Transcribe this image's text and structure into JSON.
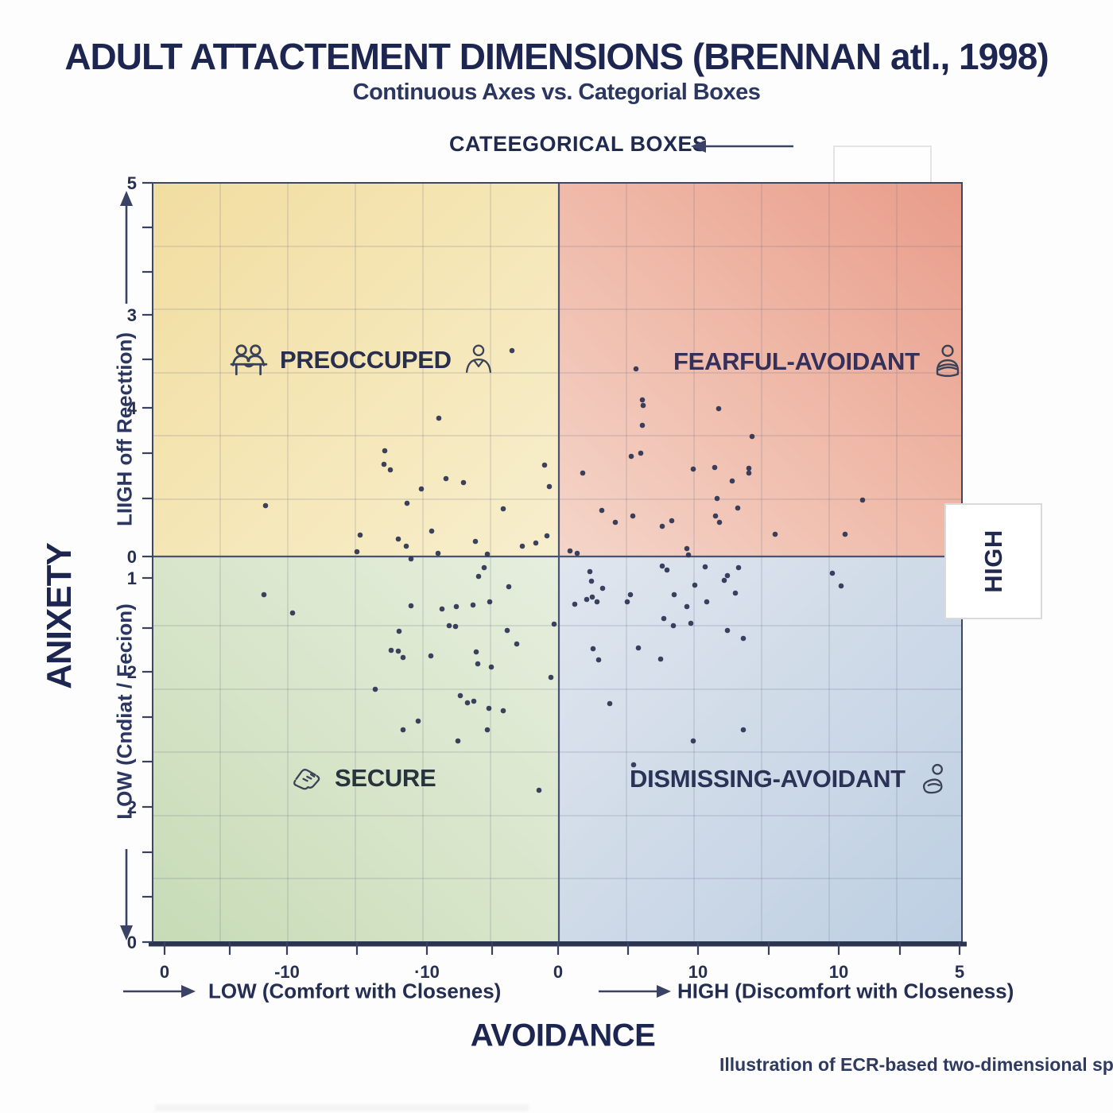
{
  "page": {
    "title": "ADULT ATTACTEMENT DIMENSIONS (BRENNAN atl., 1998)",
    "subtitle": "Continuous Axes vs. Categorial Boxes",
    "annotation": "CATEEGORICAL BOXES",
    "caption": "Illustration of ECR-based two-dimensional space"
  },
  "axes": {
    "y_title": "ANIXETY",
    "y_high_label": "LIIGH off Reecttion)",
    "y_low_label": "LOW (Cndiat / Fecion)",
    "x_title": "AVOIDANCE",
    "x_low_label": "LOW (Comfort with Closenes)",
    "x_high_label": "HIGH (Discomfort with Closeness)",
    "right_label": "HIGH"
  },
  "quadrants": [
    {
      "id": "preoccupied",
      "label": "PREOCCUPED",
      "position": "top-left",
      "fill": "#f2e2aa",
      "label_color": "#272e4e",
      "icons": [
        "people-group-icon",
        "person-icon"
      ]
    },
    {
      "id": "fearful-avoidant",
      "label": "FEARFUL-AVOIDANT",
      "position": "top-right",
      "fill": "#eeb0a0",
      "label_color": "#34305a",
      "icons": [
        "crossed-arms-person-icon"
      ]
    },
    {
      "id": "secure",
      "label": "SECURE",
      "position": "bottom-left",
      "fill": "#cfe0c0",
      "label_color": "#27343c",
      "icons": [
        "handshake-icon"
      ]
    },
    {
      "id": "dismissing-avoidant",
      "label": "DISMISSING-AVOIDANT",
      "position": "bottom-right",
      "fill": "#c4d4e5",
      "label_color": "#2a3356",
      "icons": [
        "seated-person-icon"
      ]
    }
  ],
  "colors": {
    "ink": "#1d2650",
    "point": "#2b3252",
    "grid": "rgba(95,105,130,0.25)",
    "axis": "#3e4660",
    "center_line": "#4a5472"
  },
  "chart_data": {
    "type": "scatter",
    "title": "ADULT ATTACTEMENT DIMENSIONS (BRENNAN atl., 1998)",
    "xlabel": "AVOIDANCE",
    "ylabel": "ANIXETY",
    "legend": "none",
    "grid_on": true,
    "coord_note": "source axis tick labels are garbled/non-monotonic; points captured as plot-area pixels, origin at plot top-left, plot 1018x955 px, center cross at (511,470)",
    "x_ticks": [
      [
        15,
        "0"
      ],
      [
        97,
        ""
      ],
      [
        169,
        "-10"
      ],
      [
        257,
        ""
      ],
      [
        345,
        "·10"
      ],
      [
        427,
        ""
      ],
      [
        510,
        "0"
      ],
      [
        598,
        ""
      ],
      [
        686,
        "10"
      ],
      [
        775,
        ""
      ],
      [
        863,
        "10"
      ],
      [
        940,
        ""
      ],
      [
        1015,
        "5"
      ]
    ],
    "y_ticks": [
      [
        0,
        "5"
      ],
      [
        56,
        ""
      ],
      [
        112,
        ""
      ],
      [
        166,
        "3"
      ],
      [
        222,
        ""
      ],
      [
        283,
        "4"
      ],
      [
        340,
        ""
      ],
      [
        397,
        ""
      ],
      [
        470,
        "0"
      ],
      [
        497,
        "1"
      ],
      [
        560,
        ""
      ],
      [
        615,
        "2"
      ],
      [
        672,
        ""
      ],
      [
        728,
        ""
      ],
      [
        785,
        "2"
      ],
      [
        842,
        ""
      ],
      [
        898,
        ""
      ],
      [
        955,
        "0"
      ]
    ],
    "grid": {
      "v": [
        85,
        170,
        255,
        340,
        425,
        596,
        681,
        766,
        851,
        936
      ],
      "h": [
        80,
        159,
        239,
        318,
        398,
        557,
        637,
        716,
        796,
        875
      ]
    },
    "center": {
      "x": 511,
      "y": 470
    },
    "points": [
      [
        452,
        211
      ],
      [
        360,
        296
      ],
      [
        292,
        337
      ],
      [
        291,
        354
      ],
      [
        299,
        361
      ],
      [
        369,
        372
      ],
      [
        391,
        377
      ],
      [
        338,
        385
      ],
      [
        320,
        403
      ],
      [
        142,
        406
      ],
      [
        493,
        355
      ],
      [
        499,
        382
      ],
      [
        441,
        410
      ],
      [
        261,
        443
      ],
      [
        309,
        448
      ],
      [
        319,
        457
      ],
      [
        257,
        464
      ],
      [
        351,
        438
      ],
      [
        359,
        466
      ],
      [
        325,
        473
      ],
      [
        406,
        451
      ],
      [
        421,
        467
      ],
      [
        465,
        457
      ],
      [
        482,
        453
      ],
      [
        496,
        444
      ],
      [
        608,
        234
      ],
      [
        616,
        273
      ],
      [
        617,
        280
      ],
      [
        712,
        284
      ],
      [
        616,
        305
      ],
      [
        754,
        319
      ],
      [
        614,
        340
      ],
      [
        602,
        344
      ],
      [
        541,
        365
      ],
      [
        680,
        360
      ],
      [
        707,
        358
      ],
      [
        750,
        359
      ],
      [
        750,
        365
      ],
      [
        729,
        375
      ],
      [
        710,
        397
      ],
      [
        736,
        409
      ],
      [
        893,
        399
      ],
      [
        565,
        412
      ],
      [
        604,
        419
      ],
      [
        582,
        427
      ],
      [
        641,
        432
      ],
      [
        653,
        425
      ],
      [
        708,
        419
      ],
      [
        713,
        427
      ],
      [
        783,
        442
      ],
      [
        871,
        442
      ],
      [
        672,
        460
      ],
      [
        674,
        468
      ],
      [
        525,
        463
      ],
      [
        534,
        466
      ],
      [
        417,
        484
      ],
      [
        410,
        495
      ],
      [
        448,
        508
      ],
      [
        325,
        532
      ],
      [
        364,
        536
      ],
      [
        382,
        533
      ],
      [
        403,
        531
      ],
      [
        424,
        527
      ],
      [
        373,
        557
      ],
      [
        381,
        558
      ],
      [
        446,
        563
      ],
      [
        505,
        555
      ],
      [
        310,
        564
      ],
      [
        300,
        588
      ],
      [
        309,
        589
      ],
      [
        315,
        597
      ],
      [
        350,
        595
      ],
      [
        407,
        590
      ],
      [
        409,
        605
      ],
      [
        426,
        609
      ],
      [
        458,
        580
      ],
      [
        501,
        622
      ],
      [
        280,
        637
      ],
      [
        387,
        645
      ],
      [
        396,
        654
      ],
      [
        404,
        652
      ],
      [
        423,
        661
      ],
      [
        441,
        664
      ],
      [
        334,
        677
      ],
      [
        315,
        688
      ],
      [
        421,
        688
      ],
      [
        384,
        702
      ],
      [
        486,
        764
      ],
      [
        140,
        518
      ],
      [
        176,
        541
      ],
      [
        550,
        489
      ],
      [
        641,
        482
      ],
      [
        647,
        487
      ],
      [
        695,
        483
      ],
      [
        723,
        494
      ],
      [
        737,
        484
      ],
      [
        552,
        501
      ],
      [
        566,
        510
      ],
      [
        553,
        521
      ],
      [
        559,
        527
      ],
      [
        601,
        518
      ],
      [
        597,
        527
      ],
      [
        531,
        530
      ],
      [
        546,
        524
      ],
      [
        656,
        518
      ],
      [
        682,
        506
      ],
      [
        719,
        500
      ],
      [
        733,
        516
      ],
      [
        672,
        533
      ],
      [
        697,
        527
      ],
      [
        643,
        548
      ],
      [
        655,
        557
      ],
      [
        677,
        554
      ],
      [
        723,
        563
      ],
      [
        743,
        573
      ],
      [
        554,
        586
      ],
      [
        611,
        585
      ],
      [
        561,
        600
      ],
      [
        639,
        599
      ],
      [
        575,
        655
      ],
      [
        743,
        688
      ],
      [
        680,
        702
      ],
      [
        605,
        732
      ],
      [
        855,
        491
      ],
      [
        866,
        507
      ]
    ]
  }
}
